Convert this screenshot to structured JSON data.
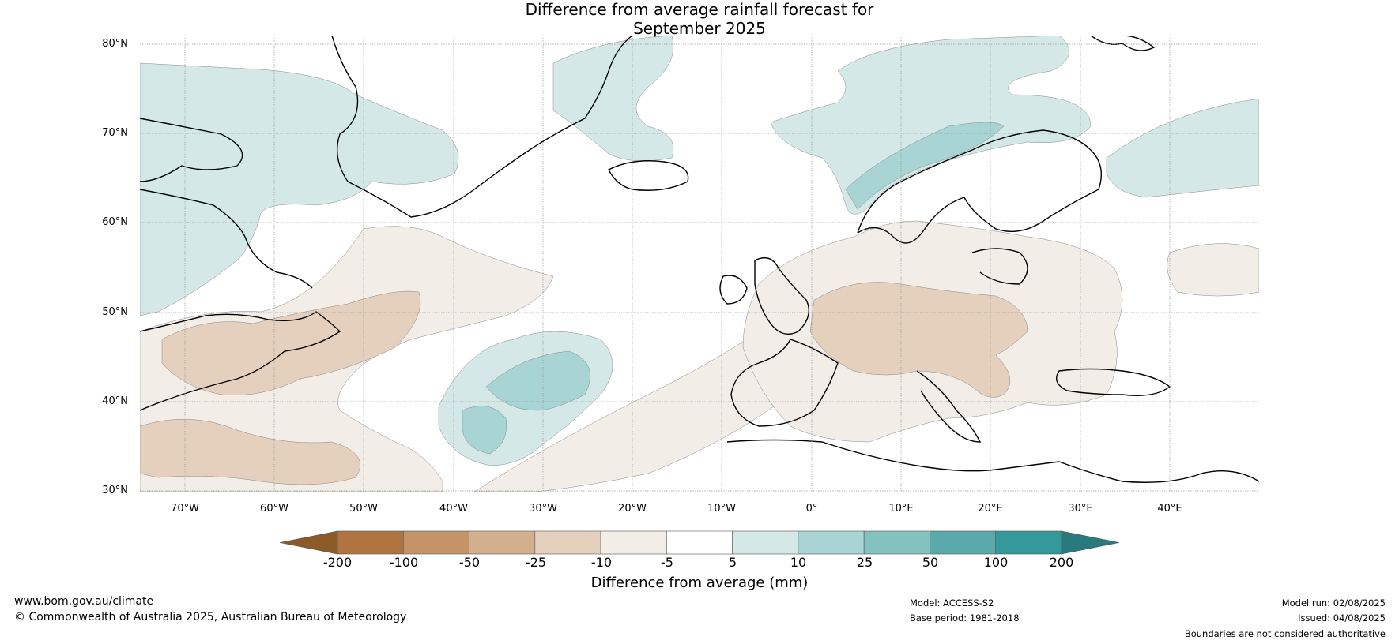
{
  "title": {
    "line1": "Difference from average rainfall forecast for",
    "line2": "September 2025"
  },
  "map": {
    "projection": "equirectangular",
    "lon_range": [
      -75,
      50
    ],
    "lat_range": [
      30,
      81
    ],
    "latitude_labels": [
      "80°N",
      "70°N",
      "60°N",
      "50°N",
      "40°N",
      "30°N"
    ],
    "longitude_labels": [
      "70°W",
      "60°W",
      "50°W",
      "40°W",
      "30°W",
      "20°W",
      "10°W",
      "0°",
      "10°E",
      "20°E",
      "30°E",
      "40°E"
    ],
    "gridlines": true
  },
  "colorbar": {
    "title": "Difference from average (mm)",
    "tick_labels": [
      "-200",
      "-100",
      "-50",
      "-25",
      "-10",
      "-5",
      "5",
      "10",
      "25",
      "50",
      "100",
      "200"
    ],
    "colors": [
      "#8c5a26",
      "#b07440",
      "#c49468",
      "#d2b08e",
      "#e5d0bd",
      "#f2ede7",
      "#ffffff",
      "#d4e8e8",
      "#a8d4d4",
      "#84c2c0",
      "#5aaaac",
      "#33999b",
      "#287a7c"
    ]
  },
  "footer": {
    "website": "www.bom.gov.au/climate",
    "copyright": "© Commonwealth of Australia 2025, Australian Bureau of Meteorology",
    "model": "Model: ACCESS-S2",
    "base_period": "Base period: 1981-2018",
    "model_run": "Model run: 02/08/2025",
    "issued": "Issued: 04/08/2025",
    "disclaimer": "Boundaries are not considered authoritative"
  }
}
